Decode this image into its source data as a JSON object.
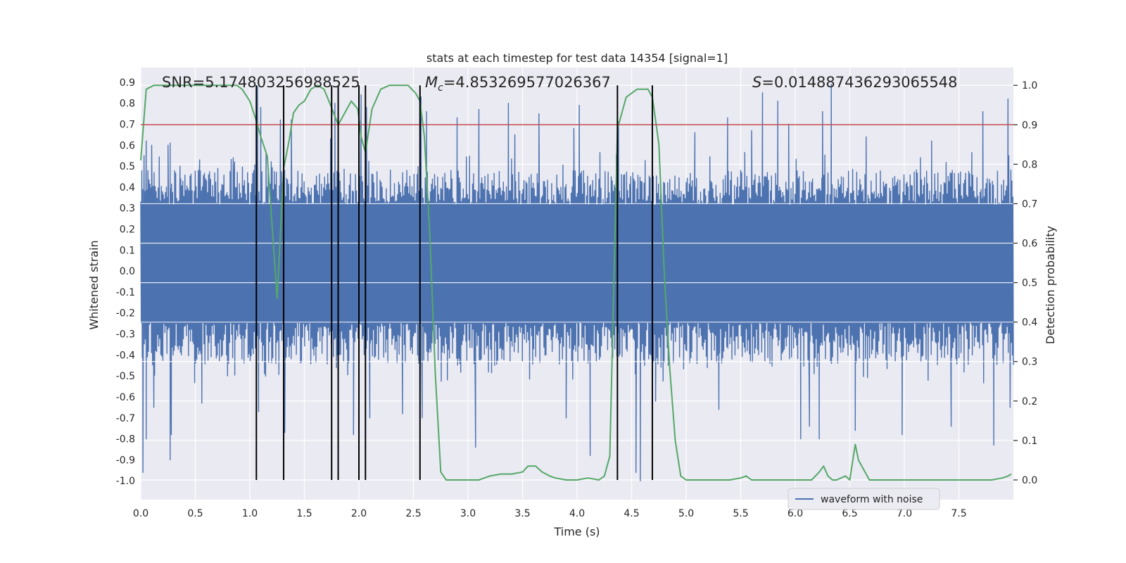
{
  "chart_data": {
    "type": "line",
    "title": "stats at each timestep for test data 14354 [signal=1]",
    "xlabel": "Time (s)",
    "ylabel": "Whitened strain",
    "y2label": "Detection probability",
    "xlim": [
      0.0,
      8.0
    ],
    "ylim": [
      -1.09,
      0.97
    ],
    "y2lim": [
      -0.05,
      1.045
    ],
    "xticks": [
      "0.0",
      "0.5",
      "1.0",
      "1.5",
      "2.0",
      "2.5",
      "3.0",
      "3.5",
      "4.0",
      "4.5",
      "5.0",
      "5.5",
      "6.0",
      "6.5",
      "7.0",
      "7.5"
    ],
    "yticks": [
      "0.9",
      "0.8",
      "0.7",
      "0.6",
      "0.5",
      "0.4",
      "0.3",
      "0.2",
      "0.1",
      "0.0",
      "-0.1",
      "-0.2",
      "-0.3",
      "-0.4",
      "-0.5",
      "-0.6",
      "-0.7",
      "-0.8",
      "-0.9",
      "-1.0"
    ],
    "y2ticks": [
      "1.0",
      "0.9",
      "0.8",
      "0.7",
      "0.6",
      "0.5",
      "0.4",
      "0.3",
      "0.2",
      "0.1",
      "0.0"
    ],
    "threshold": 0.9,
    "threshold_color": "#c44e52",
    "background_color": "#eaeaf2",
    "annotations": {
      "snr": "SNR=5.174803256988525",
      "mc_symbol": "M",
      "mc_sub": "c",
      "mc_value": "=4.853269577026367",
      "s_symbol": "S",
      "s_value": "=0.014887436293065548"
    },
    "vertical_lines_x": [
      1.06,
      1.31,
      1.75,
      1.81,
      2.0,
      2.06,
      2.56,
      4.37,
      4.69
    ],
    "series": [
      {
        "name": "waveform with noise",
        "color": "#4c72b0",
        "axis": "left",
        "noise_band": {
          "core_low": -0.245,
          "core_high": 0.315,
          "typical_low": -0.45,
          "typical_high": 0.48
        },
        "peaks": [
          {
            "x": 0.03,
            "y": 0.55
          },
          {
            "x": 0.05,
            "y": 0.62
          },
          {
            "x": 0.1,
            "y": 0.6
          },
          {
            "x": 0.25,
            "y": 0.6
          },
          {
            "x": 0.27,
            "y": 0.61
          },
          {
            "x": 0.36,
            "y": 0.5
          },
          {
            "x": 0.54,
            "y": 0.53
          },
          {
            "x": 0.86,
            "y": 0.52
          },
          {
            "x": 1.07,
            "y": 0.88
          },
          {
            "x": 1.1,
            "y": 0.78
          },
          {
            "x": 1.28,
            "y": 0.72
          },
          {
            "x": 1.38,
            "y": 0.72
          },
          {
            "x": 1.74,
            "y": 0.63
          },
          {
            "x": 1.78,
            "y": 0.8
          },
          {
            "x": 2.02,
            "y": 0.84
          },
          {
            "x": 2.07,
            "y": 0.78
          },
          {
            "x": 2.57,
            "y": 0.83
          },
          {
            "x": 2.62,
            "y": 0.76
          },
          {
            "x": 2.9,
            "y": 0.73
          },
          {
            "x": 3.1,
            "y": 0.77
          },
          {
            "x": 3.37,
            "y": 0.8
          },
          {
            "x": 3.43,
            "y": 0.65
          },
          {
            "x": 3.65,
            "y": 0.75
          },
          {
            "x": 3.97,
            "y": 0.68
          },
          {
            "x": 4.02,
            "y": 0.79
          },
          {
            "x": 4.38,
            "y": 0.71
          },
          {
            "x": 4.69,
            "y": 0.84
          },
          {
            "x": 5.08,
            "y": 0.66
          },
          {
            "x": 5.38,
            "y": 0.73
          },
          {
            "x": 5.6,
            "y": 0.67
          },
          {
            "x": 5.7,
            "y": 0.85
          },
          {
            "x": 5.84,
            "y": 0.81
          },
          {
            "x": 5.94,
            "y": 0.7
          },
          {
            "x": 6.25,
            "y": 0.76
          },
          {
            "x": 6.33,
            "y": 0.89
          },
          {
            "x": 6.65,
            "y": 0.64
          },
          {
            "x": 7.25,
            "y": 0.62
          },
          {
            "x": 7.72,
            "y": 0.76
          },
          {
            "x": 7.95,
            "y": 0.82
          }
        ],
        "troughs": [
          {
            "x": 0.02,
            "y": -0.96
          },
          {
            "x": 0.05,
            "y": -0.8
          },
          {
            "x": 0.12,
            "y": -0.65
          },
          {
            "x": 0.27,
            "y": -0.9
          },
          {
            "x": 0.28,
            "y": -0.78
          },
          {
            "x": 0.56,
            "y": -0.63
          },
          {
            "x": 1.08,
            "y": -0.67
          },
          {
            "x": 1.32,
            "y": -0.77
          },
          {
            "x": 1.95,
            "y": -0.78
          },
          {
            "x": 2.1,
            "y": -0.7
          },
          {
            "x": 2.4,
            "y": -0.68
          },
          {
            "x": 2.58,
            "y": -0.7
          },
          {
            "x": 3.07,
            "y": -0.84
          },
          {
            "x": 3.9,
            "y": -0.7
          },
          {
            "x": 4.12,
            "y": -0.88
          },
          {
            "x": 4.54,
            "y": -0.96
          },
          {
            "x": 4.58,
            "y": -1.0
          },
          {
            "x": 4.72,
            "y": -0.62
          },
          {
            "x": 5.3,
            "y": -0.66
          },
          {
            "x": 6.05,
            "y": -0.8
          },
          {
            "x": 6.13,
            "y": -0.74
          },
          {
            "x": 6.22,
            "y": -0.8
          },
          {
            "x": 6.55,
            "y": -0.76
          },
          {
            "x": 6.98,
            "y": -0.78
          },
          {
            "x": 7.43,
            "y": -0.74
          },
          {
            "x": 7.82,
            "y": -0.83
          },
          {
            "x": 7.97,
            "y": -0.65
          }
        ]
      },
      {
        "name": "detection probability",
        "color": "#55a868",
        "axis": "right",
        "x": [
          0.0,
          0.05,
          0.12,
          0.2,
          0.4,
          0.6,
          0.8,
          0.88,
          0.93,
          1.0,
          1.06,
          1.1,
          1.16,
          1.25,
          1.31,
          1.36,
          1.4,
          1.45,
          1.5,
          1.56,
          1.62,
          1.68,
          1.74,
          1.81,
          1.87,
          1.93,
          1.99,
          2.02,
          2.06,
          2.12,
          2.2,
          2.28,
          2.35,
          2.45,
          2.52,
          2.56,
          2.6,
          2.65,
          2.7,
          2.75,
          2.8,
          2.9,
          3.0,
          3.1,
          3.15,
          3.2,
          3.3,
          3.4,
          3.5,
          3.55,
          3.62,
          3.68,
          3.75,
          3.8,
          3.9,
          4.0,
          4.1,
          4.2,
          4.25,
          4.3,
          4.37,
          4.45,
          4.5,
          4.55,
          4.62,
          4.65,
          4.69,
          4.75,
          4.8,
          4.85,
          4.9,
          4.95,
          5.0,
          5.05,
          5.1,
          5.2,
          5.3,
          5.4,
          5.5,
          5.55,
          5.6,
          5.7,
          5.8,
          5.9,
          6.0,
          6.05,
          6.1,
          6.15,
          6.22,
          6.26,
          6.3,
          6.34,
          6.38,
          6.42,
          6.46,
          6.5,
          6.55,
          6.58,
          6.62,
          6.68,
          6.75,
          6.85,
          7.0,
          7.2,
          7.4,
          7.6,
          7.8,
          7.9,
          7.95,
          7.98
        ],
        "y": [
          0.81,
          0.99,
          1.0,
          1.0,
          1.0,
          1.0,
          1.0,
          1.0,
          0.99,
          0.96,
          0.91,
          0.87,
          0.82,
          0.46,
          0.79,
          0.86,
          0.93,
          0.95,
          0.96,
          0.99,
          1.0,
          0.99,
          0.95,
          0.9,
          0.93,
          0.96,
          0.94,
          0.87,
          0.83,
          0.94,
          0.99,
          1.0,
          1.0,
          1.0,
          0.98,
          0.96,
          0.87,
          0.62,
          0.27,
          0.02,
          0.0,
          0.0,
          0.0,
          0.0,
          0.005,
          0.01,
          0.015,
          0.015,
          0.02,
          0.035,
          0.035,
          0.02,
          0.01,
          0.005,
          0.0,
          0.0,
          0.005,
          0.0,
          0.01,
          0.06,
          0.89,
          0.97,
          0.98,
          0.99,
          0.99,
          0.99,
          0.97,
          0.85,
          0.52,
          0.28,
          0.1,
          0.01,
          0.0,
          0.0,
          0.0,
          0.0,
          0.0,
          0.0,
          0.005,
          0.01,
          0.0,
          0.0,
          0.0,
          0.0,
          0.0,
          0.0,
          0.0,
          0.0,
          0.02,
          0.035,
          0.01,
          0.0,
          0.0,
          0.005,
          0.01,
          0.0,
          0.09,
          0.05,
          0.03,
          0.0,
          0.0,
          0.0,
          0.0,
          0.0,
          0.0,
          0.0,
          0.0,
          0.005,
          0.01,
          0.015
        ]
      }
    ],
    "legend": {
      "label": "waveform with noise",
      "placement": "lower-right"
    }
  }
}
